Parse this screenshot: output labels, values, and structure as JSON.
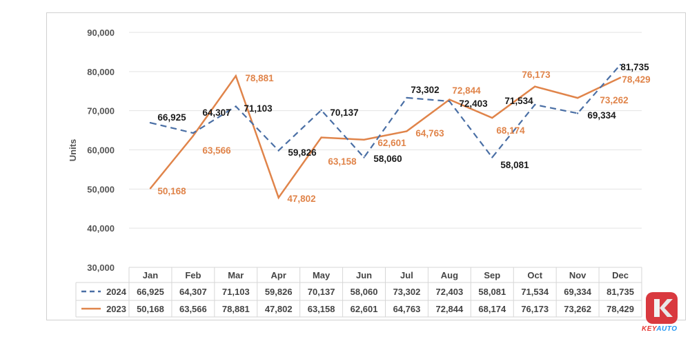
{
  "chart_data": {
    "type": "line",
    "ylabel": "Units",
    "ylim": [
      30000,
      90000
    ],
    "yticks": [
      "30,000",
      "40,000",
      "50,000",
      "60,000",
      "70,000",
      "80,000",
      "90,000"
    ],
    "tick_values": [
      30000,
      40000,
      50000,
      60000,
      70000,
      80000,
      90000
    ],
    "categories": [
      "Jan",
      "Feb",
      "Mar",
      "Apr",
      "May",
      "Jun",
      "Jul",
      "Aug",
      "Sep",
      "Oct",
      "Nov",
      "Dec"
    ],
    "grid": true,
    "legend": "data-table",
    "series": [
      {
        "name": "2024",
        "style": "dashed",
        "color": "#4a6fa5",
        "values": [
          66925,
          64307,
          71103,
          59826,
          70137,
          58060,
          73302,
          72403,
          58081,
          71534,
          69334,
          81735
        ],
        "labels": [
          "66,925",
          "64,307",
          "71,103",
          "59,826",
          "70,137",
          "58,060",
          "73,302",
          "72,403",
          "58,081",
          "71,534",
          "69,334",
          "81,735"
        ],
        "label_color": "#1a1a1a"
      },
      {
        "name": "2023",
        "style": "solid",
        "color": "#e0844a",
        "values": [
          50168,
          63566,
          78881,
          47802,
          63158,
          62601,
          64763,
          72844,
          68174,
          76173,
          73262,
          78429
        ],
        "labels": [
          "50,168",
          "63,566",
          "78,881",
          "47,802",
          "63,158",
          "62,601",
          "64,763",
          "72,844",
          "68,174",
          "76,173",
          "73,262",
          "78,429"
        ],
        "label_color": "#e0844a"
      }
    ]
  },
  "logo": {
    "text_key": "KEY",
    "text_auto": "AUTO",
    "key_color": "#e53935",
    "auto_color": "#2196f3"
  }
}
